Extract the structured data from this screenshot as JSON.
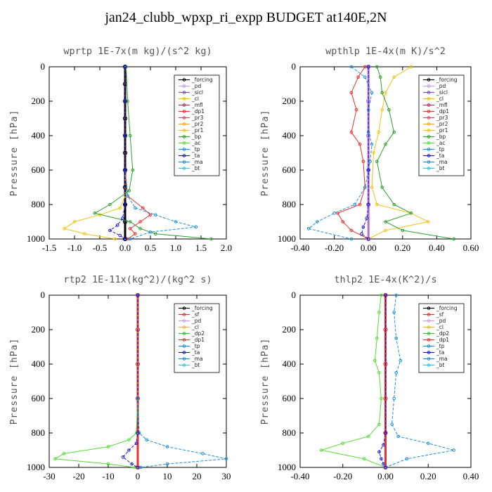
{
  "title": "jan24_clubb_wpxp_ri_expp  BUDGET at140E,2N",
  "chart_data": [
    {
      "type": "line",
      "title": "wprtp   1E-7x(m kg)/(s^2 kg)",
      "ylabel": "Pressure [hPa]",
      "xlim": [
        -1.5,
        2.0
      ],
      "ylim": [
        1000,
        0
      ],
      "xticks": [
        "-1.5",
        "-1.0",
        "-0.5",
        "0.0",
        "0.5",
        "1.0",
        "1.5",
        "2.0"
      ],
      "xtick_values": [
        -1.5,
        -1.0,
        -0.5,
        0.0,
        0.5,
        1.0,
        1.5,
        2.0
      ],
      "yticks": [
        "0",
        "200",
        "400",
        "600",
        "800",
        "1000"
      ],
      "ytick_values": [
        0,
        200,
        400,
        600,
        800,
        1000
      ],
      "legend": [
        "_forcing",
        "_pd",
        "_sicl",
        "_cl",
        "_mfl",
        "_dp1",
        "_pr3",
        "_pr2",
        "_pr1",
        "_bp",
        "_ac",
        "_tp",
        "_ta",
        "_ma",
        "_bt"
      ],
      "series": [
        {
          "name": "_forcing",
          "color": "#000000",
          "pressure": [
            0,
            100,
            200,
            300,
            400,
            500,
            600,
            700,
            800,
            900,
            1000
          ],
          "values": [
            0,
            0,
            0,
            0,
            0,
            0,
            0,
            0,
            0,
            0,
            0
          ]
        },
        {
          "name": "_pr1",
          "color": "#f4c20d",
          "pressure": [
            0,
            200,
            400,
            600,
            750,
            820,
            860,
            900,
            940,
            970,
            1000
          ],
          "values": [
            0,
            0,
            0,
            0,
            0,
            -0.1,
            -0.5,
            -1.0,
            -1.2,
            -0.8,
            -0.2
          ]
        },
        {
          "name": "_dp1",
          "color": "#e8322d",
          "pressure": [
            0,
            200,
            400,
            600,
            750,
            820,
            860,
            900,
            940,
            970,
            1000
          ],
          "values": [
            0,
            0,
            0,
            0,
            0.05,
            0.35,
            0.5,
            0.3,
            0.1,
            0.2,
            0.05
          ]
        },
        {
          "name": "_bp",
          "color": "#2ca02c",
          "pressure": [
            0,
            200,
            400,
            600,
            720,
            800,
            850,
            900,
            940,
            970,
            1000
          ],
          "values": [
            0.02,
            0.05,
            0.1,
            0.15,
            0.08,
            -0.3,
            -0.6,
            0.1,
            0.3,
            0.6,
            1.7
          ]
        },
        {
          "name": "_tp",
          "color": "#1f8fd6",
          "pressure": [
            0,
            200,
            400,
            600,
            750,
            820,
            860,
            900,
            930,
            960,
            1000
          ],
          "values": [
            0,
            0,
            0,
            0,
            0.05,
            0.2,
            0.6,
            1.0,
            1.4,
            0.5,
            0.1
          ]
        },
        {
          "name": "_ta",
          "color": "#1a1adb",
          "pressure": [
            0,
            200,
            400,
            600,
            800,
            880,
            920,
            950,
            980,
            1000
          ],
          "values": [
            0,
            0,
            0,
            0,
            0,
            -0.05,
            -0.15,
            -0.3,
            -0.1,
            0
          ]
        }
      ]
    },
    {
      "type": "line",
      "title": "wpthlp   1E-4x(m K)/s^2",
      "ylabel": "Pressure [hPa]",
      "xlim": [
        -0.4,
        0.6
      ],
      "ylim": [
        1000,
        0
      ],
      "xticks": [
        "-0.40",
        "-0.20",
        "0.00",
        "0.20",
        "0.40",
        "0.60"
      ],
      "xtick_values": [
        -0.4,
        -0.2,
        0.0,
        0.2,
        0.4,
        0.6
      ],
      "yticks": [
        "0",
        "200",
        "400",
        "600",
        "800",
        "1000"
      ],
      "ytick_values": [
        0,
        200,
        400,
        600,
        800,
        1000
      ],
      "legend": [
        "_forcing",
        "_pd",
        "_sicl",
        "_cl",
        "_mfl",
        "_dp1",
        "_pr3",
        "_pr2",
        "_pr1",
        "_bp",
        "_ac",
        "_tp",
        "_ta",
        "_ma",
        "_bt"
      ],
      "series": [
        {
          "name": "_forcing",
          "color": "#b070d0",
          "pressure": [
            0,
            200,
            400,
            600,
            800,
            1000
          ],
          "values": [
            0,
            0,
            0,
            0,
            0,
            0
          ]
        },
        {
          "name": "_dp1",
          "color": "#e8322d",
          "pressure": [
            0,
            60,
            150,
            250,
            380,
            450,
            550,
            700,
            800,
            850,
            900,
            950,
            1000
          ],
          "values": [
            -0.02,
            -0.06,
            -0.1,
            -0.07,
            -0.1,
            -0.05,
            -0.03,
            -0.02,
            -0.05,
            -0.18,
            -0.15,
            -0.1,
            0
          ]
        },
        {
          "name": "_pr1",
          "color": "#f4c20d",
          "pressure": [
            0,
            60,
            150,
            250,
            380,
            500,
            700,
            800,
            850,
            900,
            950,
            1000
          ],
          "values": [
            0.25,
            0.15,
            0.1,
            0.08,
            0.06,
            0.03,
            0.02,
            0.05,
            0.25,
            0.35,
            0.1,
            0
          ]
        },
        {
          "name": "_bp",
          "color": "#2ca02c",
          "pressure": [
            0,
            60,
            150,
            250,
            380,
            450,
            550,
            700,
            800,
            850,
            900,
            950,
            1000
          ],
          "values": [
            0.05,
            0.07,
            0.08,
            0.12,
            0.15,
            0.1,
            0.05,
            0.08,
            0.15,
            0.25,
            0.1,
            0.2,
            0.5
          ]
        },
        {
          "name": "_tp",
          "color": "#1f8fd6",
          "pressure": [
            0,
            60,
            150,
            250,
            380,
            450,
            550,
            700,
            800,
            850,
            900,
            940,
            1000
          ],
          "values": [
            -0.1,
            -0.02,
            0.02,
            0,
            0,
            0.02,
            0.01,
            -0.02,
            -0.08,
            -0.2,
            -0.3,
            -0.35,
            -0.1
          ]
        },
        {
          "name": "_ta",
          "color": "#1a1adb",
          "pressure": [
            0,
            600,
            800,
            880,
            930,
            970,
            1000
          ],
          "values": [
            0,
            0,
            0,
            -0.01,
            -0.03,
            -0.04,
            0
          ]
        }
      ]
    },
    {
      "type": "line",
      "title": "rtp2   1E-11x(kg^2)/(kg^2 s)",
      "ylabel": "Pressure [hPa]",
      "xlim": [
        -30,
        30
      ],
      "ylim": [
        1000,
        0
      ],
      "xticks": [
        "-30",
        "-20",
        "-10",
        "0",
        "10",
        "20",
        "30"
      ],
      "xtick_values": [
        -30,
        -20,
        -10,
        0,
        10,
        20,
        30
      ],
      "yticks": [
        "0",
        "200",
        "400",
        "600",
        "800",
        "1000"
      ],
      "ytick_values": [
        0,
        200,
        400,
        600,
        800,
        1000
      ],
      "legend": [
        "_forcing",
        "_sf",
        "_pd",
        "_cl",
        "_dp2",
        "_dp1",
        "_tp",
        "_ta",
        "_ma",
        "_bt"
      ],
      "series": [
        {
          "name": "_forcing",
          "color": "#e8322d",
          "pressure": [
            0,
            200,
            400,
            600,
            800,
            1000
          ],
          "values": [
            0,
            0,
            0,
            0,
            0,
            0
          ]
        },
        {
          "name": "_dp1",
          "color": "#55dd33",
          "pressure": [
            0,
            600,
            800,
            840,
            880,
            920,
            950,
            980,
            1000
          ],
          "values": [
            0,
            0,
            -0.5,
            -3,
            -10,
            -25,
            -28,
            -10,
            -1
          ]
        },
        {
          "name": "_tp",
          "color": "#1f8fd6",
          "pressure": [
            0,
            600,
            800,
            840,
            880,
            920,
            950,
            980,
            1000
          ],
          "values": [
            0,
            0,
            0.5,
            3,
            10,
            22,
            30,
            10,
            1
          ]
        },
        {
          "name": "_ta",
          "color": "#1a1adb",
          "pressure": [
            0,
            800,
            860,
            900,
            940,
            980,
            1000
          ],
          "values": [
            0,
            0,
            -0.5,
            -3,
            -5,
            -2,
            0
          ]
        }
      ]
    },
    {
      "type": "line",
      "title": "thlp2   1E-4x(K^2)/s",
      "ylabel": "Pressure [hPa]",
      "xlim": [
        -0.4,
        0.4
      ],
      "ylim": [
        1000,
        0
      ],
      "xticks": [
        "-0.40",
        "-0.20",
        "0.00",
        "0.20",
        "0.40"
      ],
      "xtick_values": [
        -0.4,
        -0.2,
        0.0,
        0.2,
        0.4
      ],
      "yticks": [
        "0",
        "200",
        "400",
        "600",
        "800",
        "1000"
      ],
      "ytick_values": [
        0,
        200,
        400,
        600,
        800,
        1000
      ],
      "legend": [
        "_forcing",
        "_sf",
        "_pd",
        "_cl",
        "_dp2",
        "_dp1",
        "_tp",
        "_ta",
        "_ma",
        "_bt"
      ],
      "series": [
        {
          "name": "_forcing",
          "color": "#e8322d",
          "pressure": [
            0,
            200,
            400,
            600,
            800,
            1000
          ],
          "values": [
            0,
            0,
            0,
            0,
            0,
            0
          ]
        },
        {
          "name": "_dp1",
          "color": "#55dd33",
          "pressure": [
            0,
            100,
            250,
            380,
            450,
            600,
            750,
            820,
            860,
            900,
            950,
            1000
          ],
          "values": [
            -0.02,
            -0.03,
            -0.04,
            -0.05,
            -0.03,
            -0.02,
            -0.03,
            -0.08,
            -0.2,
            -0.3,
            -0.1,
            0
          ]
        },
        {
          "name": "_tp",
          "color": "#1f8fd6",
          "pressure": [
            0,
            100,
            250,
            380,
            450,
            600,
            750,
            820,
            860,
            900,
            950,
            1000
          ],
          "values": [
            0.05,
            0.04,
            0.05,
            0.07,
            0.05,
            0.04,
            0.03,
            0.06,
            0.2,
            0.32,
            0.1,
            0
          ]
        },
        {
          "name": "_ta",
          "color": "#1a1adb",
          "pressure": [
            0,
            800,
            870,
            910,
            950,
            980,
            1000
          ],
          "values": [
            0,
            0,
            -0.01,
            -0.03,
            -0.02,
            -0.01,
            0
          ]
        }
      ]
    }
  ]
}
